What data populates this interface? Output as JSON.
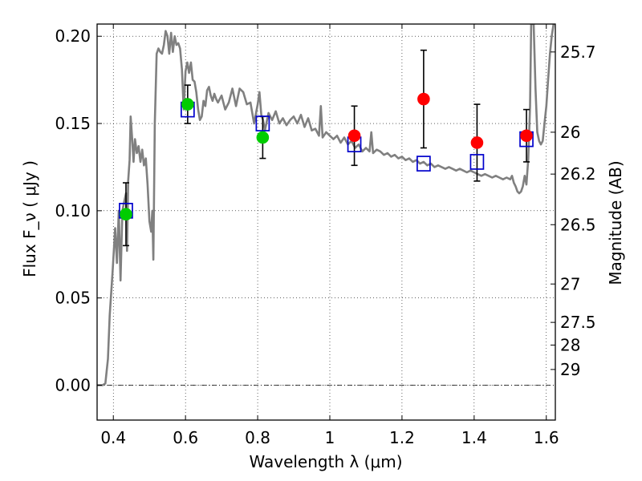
{
  "chart_data": {
    "type": "scatter",
    "xlabel": "Wavelength  λ (μm)",
    "ylabel": "Flux  F_ν ( μJy )",
    "y2label": "Magnitude (AB)",
    "xlim": [
      0.355,
      1.625
    ],
    "ylim": [
      -0.02,
      0.207
    ],
    "xticks": [
      0.4,
      0.6,
      0.8,
      1.0,
      1.2,
      1.4,
      1.6
    ],
    "xtick_labels": [
      "0.4",
      "0.6",
      "0.8",
      "1",
      "1.2",
      "1.4",
      "1.6"
    ],
    "yticks": [
      0.0,
      0.05,
      0.1,
      0.15,
      0.2
    ],
    "ytick_labels": [
      "0.00",
      "0.05",
      "0.10",
      "0.15",
      "0.20"
    ],
    "y2ticks": [
      {
        "label": "25.7",
        "flux": 0.191
      },
      {
        "label": "26",
        "flux": 0.145
      },
      {
        "label": "26.2",
        "flux": 0.121
      },
      {
        "label": "26.5",
        "flux": 0.092
      },
      {
        "label": "27",
        "flux": 0.058
      },
      {
        "label": "27.5",
        "flux": 0.036
      },
      {
        "label": "28",
        "flux": 0.023
      },
      {
        "label": "29",
        "flux": 0.009
      }
    ],
    "grid": true,
    "grid_style": "dotted",
    "zero_line": true,
    "model_spectrum": {
      "color": "#808080",
      "points": [
        [
          0.355,
          0.0
        ],
        [
          0.37,
          0.0
        ],
        [
          0.378,
          0.001
        ],
        [
          0.385,
          0.015
        ],
        [
          0.39,
          0.04
        ],
        [
          0.398,
          0.065
        ],
        [
          0.405,
          0.09
        ],
        [
          0.41,
          0.07
        ],
        [
          0.415,
          0.1
        ],
        [
          0.42,
          0.06
        ],
        [
          0.425,
          0.1
        ],
        [
          0.43,
          0.105
        ],
        [
          0.435,
          0.11
        ],
        [
          0.438,
          0.077
        ],
        [
          0.441,
          0.117
        ],
        [
          0.445,
          0.129
        ],
        [
          0.448,
          0.154
        ],
        [
          0.452,
          0.142
        ],
        [
          0.456,
          0.128
        ],
        [
          0.46,
          0.141
        ],
        [
          0.465,
          0.133
        ],
        [
          0.47,
          0.137
        ],
        [
          0.475,
          0.128
        ],
        [
          0.48,
          0.135
        ],
        [
          0.485,
          0.126
        ],
        [
          0.49,
          0.13
        ],
        [
          0.495,
          0.115
        ],
        [
          0.5,
          0.094
        ],
        [
          0.505,
          0.088
        ],
        [
          0.508,
          0.1
        ],
        [
          0.511,
          0.072
        ],
        [
          0.515,
          0.15
        ],
        [
          0.52,
          0.19
        ],
        [
          0.525,
          0.193
        ],
        [
          0.53,
          0.191
        ],
        [
          0.535,
          0.19
        ],
        [
          0.54,
          0.195
        ],
        [
          0.545,
          0.203
        ],
        [
          0.55,
          0.2
        ],
        [
          0.555,
          0.19
        ],
        [
          0.56,
          0.202
        ],
        [
          0.565,
          0.191
        ],
        [
          0.57,
          0.2
        ],
        [
          0.575,
          0.195
        ],
        [
          0.58,
          0.196
        ],
        [
          0.585,
          0.193
        ],
        [
          0.59,
          0.181
        ],
        [
          0.595,
          0.158
        ],
        [
          0.6,
          0.18
        ],
        [
          0.605,
          0.185
        ],
        [
          0.61,
          0.179
        ],
        [
          0.615,
          0.185
        ],
        [
          0.62,
          0.175
        ],
        [
          0.625,
          0.174
        ],
        [
          0.63,
          0.168
        ],
        [
          0.635,
          0.158
        ],
        [
          0.64,
          0.152
        ],
        [
          0.645,
          0.154
        ],
        [
          0.65,
          0.163
        ],
        [
          0.655,
          0.16
        ],
        [
          0.66,
          0.169
        ],
        [
          0.665,
          0.171
        ],
        [
          0.67,
          0.166
        ],
        [
          0.675,
          0.163
        ],
        [
          0.68,
          0.167
        ],
        [
          0.685,
          0.164
        ],
        [
          0.69,
          0.162
        ],
        [
          0.7,
          0.166
        ],
        [
          0.71,
          0.158
        ],
        [
          0.72,
          0.162
        ],
        [
          0.73,
          0.17
        ],
        [
          0.74,
          0.16
        ],
        [
          0.75,
          0.17
        ],
        [
          0.76,
          0.168
        ],
        [
          0.77,
          0.161
        ],
        [
          0.78,
          0.162
        ],
        [
          0.79,
          0.15
        ],
        [
          0.8,
          0.161
        ],
        [
          0.805,
          0.168
        ],
        [
          0.81,
          0.155
        ],
        [
          0.815,
          0.152
        ],
        [
          0.82,
          0.146
        ],
        [
          0.83,
          0.156
        ],
        [
          0.84,
          0.152
        ],
        [
          0.85,
          0.157
        ],
        [
          0.86,
          0.15
        ],
        [
          0.87,
          0.153
        ],
        [
          0.88,
          0.149
        ],
        [
          0.89,
          0.152
        ],
        [
          0.9,
          0.154
        ],
        [
          0.91,
          0.15
        ],
        [
          0.92,
          0.155
        ],
        [
          0.93,
          0.148
        ],
        [
          0.94,
          0.153
        ],
        [
          0.95,
          0.146
        ],
        [
          0.96,
          0.147
        ],
        [
          0.97,
          0.143
        ],
        [
          0.975,
          0.16
        ],
        [
          0.98,
          0.142
        ],
        [
          0.99,
          0.145
        ],
        [
          1.0,
          0.143
        ],
        [
          1.01,
          0.141
        ],
        [
          1.02,
          0.143
        ],
        [
          1.03,
          0.139
        ],
        [
          1.04,
          0.142
        ],
        [
          1.05,
          0.138
        ],
        [
          1.06,
          0.14
        ],
        [
          1.07,
          0.136
        ],
        [
          1.08,
          0.138
        ],
        [
          1.09,
          0.134
        ],
        [
          1.1,
          0.136
        ],
        [
          1.11,
          0.134
        ],
        [
          1.115,
          0.145
        ],
        [
          1.12,
          0.133
        ],
        [
          1.13,
          0.135
        ],
        [
          1.14,
          0.134
        ],
        [
          1.15,
          0.132
        ],
        [
          1.16,
          0.133
        ],
        [
          1.17,
          0.131
        ],
        [
          1.18,
          0.132
        ],
        [
          1.19,
          0.13
        ],
        [
          1.2,
          0.131
        ],
        [
          1.21,
          0.129
        ],
        [
          1.22,
          0.13
        ],
        [
          1.23,
          0.128
        ],
        [
          1.24,
          0.129
        ],
        [
          1.25,
          0.127
        ],
        [
          1.26,
          0.128
        ],
        [
          1.27,
          0.126
        ],
        [
          1.28,
          0.127
        ],
        [
          1.29,
          0.125
        ],
        [
          1.3,
          0.126
        ],
        [
          1.31,
          0.125
        ],
        [
          1.32,
          0.124
        ],
        [
          1.33,
          0.125
        ],
        [
          1.34,
          0.124
        ],
        [
          1.35,
          0.123
        ],
        [
          1.36,
          0.124
        ],
        [
          1.37,
          0.123
        ],
        [
          1.38,
          0.122
        ],
        [
          1.39,
          0.123
        ],
        [
          1.4,
          0.122
        ],
        [
          1.41,
          0.121
        ],
        [
          1.42,
          0.12
        ],
        [
          1.43,
          0.121
        ],
        [
          1.44,
          0.12
        ],
        [
          1.45,
          0.119
        ],
        [
          1.46,
          0.12
        ],
        [
          1.47,
          0.119
        ],
        [
          1.48,
          0.118
        ],
        [
          1.49,
          0.119
        ],
        [
          1.5,
          0.118
        ],
        [
          1.505,
          0.12
        ],
        [
          1.51,
          0.116
        ],
        [
          1.515,
          0.114
        ],
        [
          1.52,
          0.111
        ],
        [
          1.525,
          0.11
        ],
        [
          1.53,
          0.111
        ],
        [
          1.535,
          0.114
        ],
        [
          1.54,
          0.12
        ],
        [
          1.545,
          0.115
        ],
        [
          1.55,
          0.13
        ],
        [
          1.555,
          0.16
        ],
        [
          1.558,
          0.207
        ],
        [
          1.565,
          0.207
        ],
        [
          1.57,
          0.17
        ],
        [
          1.575,
          0.145
        ],
        [
          1.58,
          0.14
        ],
        [
          1.585,
          0.138
        ],
        [
          1.59,
          0.14
        ],
        [
          1.595,
          0.15
        ],
        [
          1.6,
          0.16
        ],
        [
          1.605,
          0.175
        ],
        [
          1.61,
          0.19
        ],
        [
          1.615,
          0.2
        ],
        [
          1.62,
          0.207
        ]
      ]
    },
    "model_photometry": {
      "marker": "open-square",
      "color": "#0000cc",
      "points": [
        {
          "x": 0.435,
          "y": 0.1
        },
        {
          "x": 0.606,
          "y": 0.158
        },
        {
          "x": 0.814,
          "y": 0.15
        },
        {
          "x": 1.068,
          "y": 0.138
        },
        {
          "x": 1.26,
          "y": 0.127
        },
        {
          "x": 1.408,
          "y": 0.128
        },
        {
          "x": 1.545,
          "y": 0.141
        }
      ]
    },
    "observed_optical": {
      "marker": "filled-circle",
      "color": "#00cc00",
      "points": [
        {
          "x": 0.435,
          "y": 0.098,
          "err": 0.018
        },
        {
          "x": 0.606,
          "y": 0.161,
          "err": 0.011
        },
        {
          "x": 0.814,
          "y": 0.142,
          "err": 0.012
        }
      ]
    },
    "observed_infrared": {
      "marker": "filled-circle",
      "color": "#ff0000",
      "points": [
        {
          "x": 1.068,
          "y": 0.143,
          "err": 0.017
        },
        {
          "x": 1.26,
          "y": 0.164,
          "err": 0.028
        },
        {
          "x": 1.408,
          "y": 0.139,
          "err": 0.022
        },
        {
          "x": 1.545,
          "y": 0.143,
          "err": 0.015
        }
      ]
    },
    "errorbar_color": "#000000"
  }
}
